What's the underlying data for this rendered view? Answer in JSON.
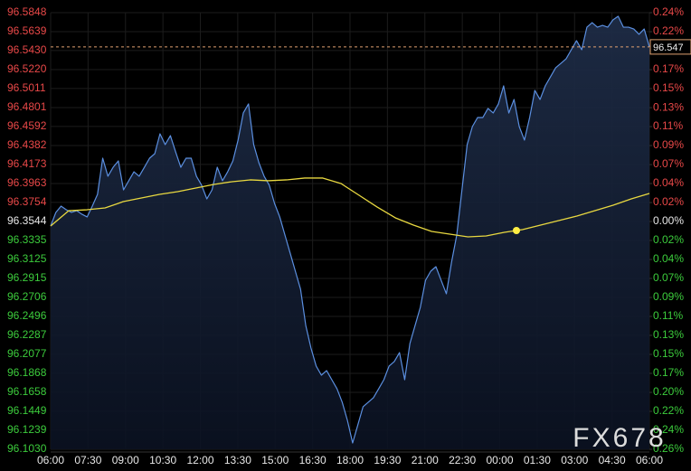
{
  "chart_data": {
    "type": "line",
    "watermark": "FX678",
    "xticks": [
      "06:00",
      "07:30",
      "09:00",
      "10:30",
      "12:00",
      "13:30",
      "15:00",
      "16:30",
      "18:00",
      "19:30",
      "21:00",
      "22:30",
      "00:00",
      "01:30",
      "03:00",
      "04:30",
      "06:00"
    ],
    "ylim": [
      96.103,
      96.5848
    ],
    "yticks": [
      96.5848,
      96.5639,
      {
        "value": 96.543,
        "label": "96.5430"
      },
      {
        "value": 96.522,
        "label": "96.5220"
      },
      96.5011,
      96.4801,
      96.4592,
      96.4382,
      96.4173,
      96.3963,
      96.3754,
      96.3544,
      96.3335,
      96.3125,
      96.2915,
      96.2706,
      96.2496,
      96.2287,
      96.2077,
      96.1868,
      96.1658,
      96.1449,
      96.1239,
      {
        "value": 96.103,
        "label": "96.1030"
      }
    ],
    "y2lim": [
      -0.2609,
      0.2392
    ],
    "y2ticks": [
      {
        "value": 0.2392,
        "label": "0.24%"
      },
      {
        "value": 0.2174,
        "label": "0.22%"
      },
      {
        "value": 0.1957,
        "label": "0.20%"
      },
      {
        "value": 0.1739,
        "label": "0.17%"
      },
      {
        "value": 0.1522,
        "label": "0.15%"
      },
      {
        "value": 0.1304,
        "label": "0.13%"
      },
      {
        "value": 0.1087,
        "label": "0.11%"
      },
      {
        "value": 0.087,
        "label": "0.09%"
      },
      {
        "value": 0.0652,
        "label": "0.07%"
      },
      {
        "value": 0.0435,
        "label": "0.04%"
      },
      {
        "value": 0.0217,
        "label": "0.02%"
      },
      {
        "value": 0,
        "label": "0.00%"
      },
      {
        "value": -0.0217,
        "label": "0.02%"
      },
      {
        "value": -0.0435,
        "label": "0.04%"
      },
      {
        "value": -0.0652,
        "label": "0.07%"
      },
      {
        "value": -0.087,
        "label": "0.09%"
      },
      {
        "value": -0.1087,
        "label": "0.11%"
      },
      {
        "value": -0.1304,
        "label": "0.13%"
      },
      {
        "value": -0.1522,
        "label": "0.15%"
      },
      {
        "value": -0.1739,
        "label": "0.17%"
      },
      {
        "value": -0.1957,
        "label": "0.20%"
      },
      {
        "value": -0.2174,
        "label": "0.22%"
      },
      {
        "value": -0.2392,
        "label": "0.24%"
      },
      {
        "value": -0.2609,
        "label": "0.26%"
      }
    ],
    "grid": true,
    "last_price": 96.547,
    "last_price_color": "#e0a070",
    "series": [
      {
        "color": "#5b8fe0",
        "area": true,
        "values": [
          96.3494,
          96.3644,
          96.3713,
          96.3673,
          96.3644,
          96.3663,
          96.3624,
          96.3594,
          96.3713,
          96.3843,
          96.4242,
          96.4043,
          96.4142,
          96.4212,
          96.3893,
          96.3993,
          96.4092,
          96.4043,
          96.4142,
          96.4242,
          96.4292,
          96.4511,
          96.4392,
          96.4491,
          96.4312,
          96.4142,
          96.4242,
          96.4242,
          96.4043,
          96.3943,
          96.3793,
          96.3893,
          96.4142,
          96.3993,
          96.4092,
          96.4212,
          96.4442,
          96.4741,
          96.4841,
          96.4392,
          96.4192,
          96.4043,
          96.3943,
          96.3743,
          96.3594,
          96.3394,
          96.3195,
          96.2995,
          96.2796,
          96.2397,
          96.2147,
          96.1948,
          96.1848,
          96.1898,
          96.1798,
          96.1698,
          96.1549,
          96.1349,
          96.11,
          96.1299,
          96.1499,
          96.1549,
          96.1599,
          96.1698,
          96.1798,
          96.1948,
          96.1998,
          96.2097,
          96.1798,
          96.2197,
          96.2397,
          96.2596,
          96.2895,
          96.2995,
          96.3045,
          96.2895,
          96.2746,
          96.3095,
          96.3394,
          96.3893,
          96.4392,
          96.4591,
          96.4691,
          96.4691,
          96.4791,
          96.4741,
          96.4841,
          96.504,
          96.4741,
          96.489,
          96.4591,
          96.4442,
          96.4691,
          96.499,
          96.489,
          96.504,
          96.514,
          96.524,
          96.5289,
          96.5339,
          96.5439,
          96.5539,
          96.5439,
          96.5688,
          96.5738,
          96.5688,
          96.5708,
          96.5688,
          96.5768,
          96.5808,
          96.5688,
          96.5688,
          96.5668,
          96.5609,
          96.5668,
          96.547
        ]
      },
      {
        "color": "#e8d840",
        "values": [
          96.3494,
          96.3663,
          96.3673,
          96.3693,
          96.3763,
          96.3803,
          96.3843,
          96.3873,
          96.3913,
          96.3953,
          96.3983,
          96.4003,
          96.3993,
          96.4003,
          96.4023,
          96.4023,
          96.3963,
          96.3833,
          96.3703,
          96.3584,
          96.3504,
          96.3434,
          96.3404,
          96.3374,
          96.3384,
          96.3424,
          96.3454,
          96.3504,
          96.3554,
          96.3604,
          96.3663,
          96.3723,
          96.3793,
          96.3853
        ]
      }
    ]
  }
}
